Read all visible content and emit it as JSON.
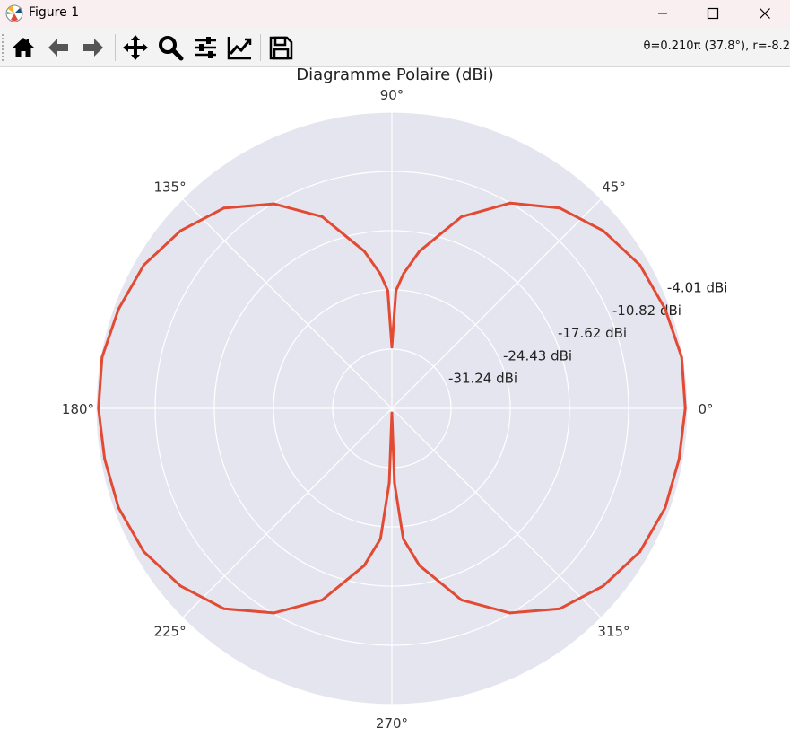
{
  "window": {
    "title": "Figure 1",
    "minimize_icon": "minimize-icon",
    "maximize_icon": "maximize-icon",
    "close_icon": "close-icon"
  },
  "toolbar": {
    "buttons": [
      {
        "name": "home-button",
        "icon": "home-icon"
      },
      {
        "name": "back-button",
        "icon": "arrow-left-icon"
      },
      {
        "name": "forward-button",
        "icon": "arrow-right-icon"
      },
      {
        "name": "pan-button",
        "icon": "move-icon"
      },
      {
        "name": "zoom-button",
        "icon": "magnifier-icon"
      },
      {
        "name": "configure-subplots-button",
        "icon": "sliders-icon"
      },
      {
        "name": "edit-axis-button",
        "icon": "line-chart-icon"
      },
      {
        "name": "save-button",
        "icon": "floppy-disk-icon"
      }
    ],
    "coords_readout": "θ=0.210π (37.8°), r=-8.2"
  },
  "colors": {
    "plot_background": "#e5e5ef",
    "grid": "#ffffff",
    "line": "#e24a33"
  },
  "chart_data": {
    "type": "line",
    "projection": "polar",
    "title": "Diagramme Polaire (dBi)",
    "theta_ticks": [
      "0°",
      "45°",
      "90°",
      "135°",
      "180°",
      "225°",
      "270°",
      "315°"
    ],
    "r_ticks": [
      "-31.24 dBi",
      "-24.43 dBi",
      "-17.62 dBi",
      "-10.82 dBi",
      "-4.01 dBi"
    ],
    "r_tick_values": [
      -31.24,
      -24.43,
      -17.62,
      -10.82,
      -4.01
    ],
    "rlim": [
      -38.05,
      -4.01
    ],
    "grid": true,
    "series": [
      {
        "theta_deg": [
          0,
          10,
          20,
          30,
          40,
          50,
          60,
          70,
          80,
          85,
          88,
          90,
          92,
          95,
          100,
          110,
          120,
          130,
          140,
          150,
          160,
          170,
          180,
          190,
          200,
          210,
          220,
          230,
          240,
          250,
          260,
          265,
          268,
          270,
          272,
          275,
          280,
          290,
          300,
          310,
          320,
          330,
          340,
          350,
          360
        ],
        "r_dbi": [
          -4.3,
          -4.2,
          -4.6,
          -5.1,
          -6.3,
          -8.0,
          -10.8,
          -14.6,
          -19.7,
          -22.5,
          -24.5,
          -31.0,
          -24.5,
          -22.5,
          -19.7,
          -14.6,
          -10.9,
          -8.0,
          -6.3,
          -5.1,
          -4.6,
          -4.2,
          -4.3,
          -4.5,
          -4.6,
          -5.1,
          -6.3,
          -8.0,
          -10.9,
          -14.6,
          -19.7,
          -23.0,
          -29.5,
          -37.5,
          -29.5,
          -23.0,
          -19.7,
          -14.6,
          -10.9,
          -8.0,
          -6.3,
          -5.1,
          -4.6,
          -4.5,
          -4.3
        ]
      }
    ]
  }
}
